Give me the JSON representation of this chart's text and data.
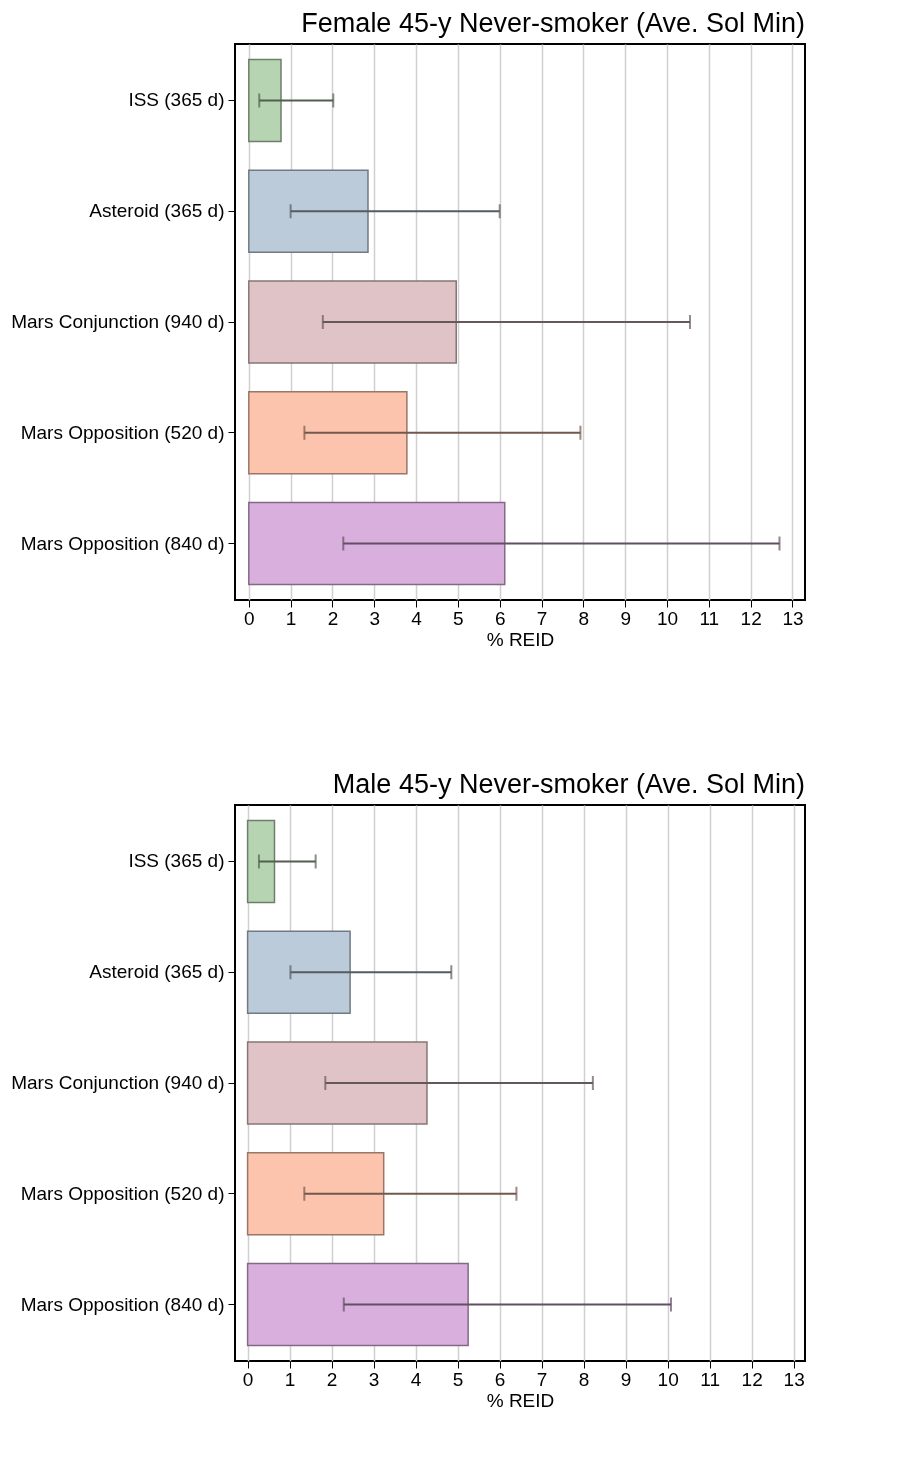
{
  "chart_data": [
    {
      "type": "bar",
      "orientation": "horizontal",
      "title": "Female 45-y Never-smoker (Ave. Sol Min)",
      "xlabel": "% REID",
      "categories": [
        "ISS (365 d)",
        "Asteroid (365 d)",
        "Mars Conjunction (940 d)",
        "Mars Opposition (520 d)",
        "Mars Opposition (840 d)"
      ],
      "values": [
        0.77,
        2.85,
        4.96,
        3.78,
        6.12
      ],
      "errors": [
        [
          0.25,
          2.02
        ],
        [
          1.0,
          6.0
        ],
        [
          1.77,
          10.55
        ],
        [
          1.33,
          7.93
        ],
        [
          2.26,
          12.69
        ]
      ],
      "colors": [
        "#b6d4b2",
        "#bccbd9",
        "#e0c3c6",
        "#fdc4ad",
        "#d9b0dd"
      ],
      "xlim": [
        -0.33,
        13.3
      ],
      "xticks": [
        0,
        1,
        2,
        3,
        4,
        5,
        6,
        7,
        8,
        9,
        10,
        11,
        12,
        13
      ],
      "grid": "x"
    },
    {
      "type": "bar",
      "orientation": "horizontal",
      "title": "Male 45-y Never-smoker (Ave. Sol Min)",
      "xlabel": "% REID",
      "categories": [
        "ISS (365 d)",
        "Asteroid (365 d)",
        "Mars Conjunction (940 d)",
        "Mars Opposition (520 d)",
        "Mars Opposition (840 d)"
      ],
      "values": [
        0.64,
        2.44,
        4.27,
        3.24,
        5.25
      ],
      "errors": [
        [
          0.27,
          1.62
        ],
        [
          1.02,
          4.85
        ],
        [
          1.85,
          8.22
        ],
        [
          1.35,
          6.4
        ],
        [
          2.29,
          10.08
        ]
      ],
      "colors": [
        "#b6d4b2",
        "#bccbd9",
        "#e0c3c6",
        "#fdc4ad",
        "#d9b0dd"
      ],
      "xlim": [
        -0.3,
        13.27
      ],
      "xticks": [
        0,
        1,
        2,
        3,
        4,
        5,
        6,
        7,
        8,
        9,
        10,
        11,
        12,
        13
      ],
      "grid": "x"
    }
  ]
}
